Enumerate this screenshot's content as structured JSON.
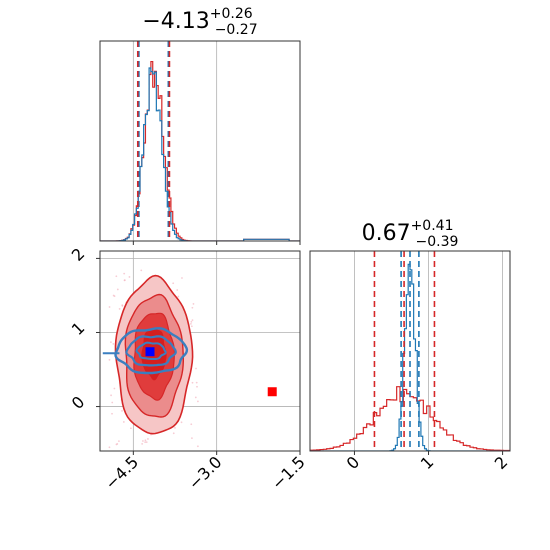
{
  "chart_data": [
    {
      "panel": "marginal-param1",
      "type": "histogram",
      "title": {
        "main": "−4.13",
        "sup": "+0.26",
        "sub": "−0.27"
      },
      "xlim": [
        -5.1,
        -1.5
      ],
      "series": [
        {
          "color": "#1f77b4",
          "quantiles": [
            -4.4,
            -4.13,
            -3.87
          ]
        },
        {
          "color": "#d62728",
          "quantiles": [
            -4.42,
            -4.13,
            -3.85
          ]
        }
      ],
      "grid": true
    },
    {
      "panel": "joint",
      "type": "contour",
      "xlim": [
        -5.1,
        -1.5
      ],
      "ylim": [
        -0.6,
        2.1
      ],
      "x_ticks": [
        -4.5,
        -3.0,
        -1.5
      ],
      "x_tick_labels": [
        "−4.5",
        "−3.0",
        "−1.5"
      ],
      "y_ticks": [
        0,
        1,
        2
      ],
      "y_tick_labels": [
        "0",
        "1",
        "2"
      ],
      "series": [
        {
          "color": "#d62728",
          "center": [
            -4.13,
            0.67
          ],
          "filled": true
        },
        {
          "color": "#1f77b4",
          "center": [
            -4.13,
            0.75
          ],
          "filled": false
        }
      ],
      "markers": [
        {
          "color": "#0000ff",
          "x": -4.2,
          "y": 0.74
        },
        {
          "color": "#ff0000",
          "x": -2.0,
          "y": 0.2
        }
      ],
      "grid": true
    },
    {
      "panel": "marginal-param2",
      "type": "histogram",
      "title": {
        "main": "0.67",
        "sup": "+0.41",
        "sub": "−0.39"
      },
      "xlim": [
        -0.6,
        2.1
      ],
      "x_ticks": [
        0,
        1,
        2
      ],
      "x_tick_labels": [
        "0",
        "1",
        "2"
      ],
      "series": [
        {
          "color": "#1f77b4",
          "quantiles": [
            0.63,
            0.75,
            0.87
          ]
        },
        {
          "color": "#d62728",
          "quantiles": [
            0.27,
            0.67,
            1.08
          ]
        }
      ],
      "grid": true
    }
  ]
}
